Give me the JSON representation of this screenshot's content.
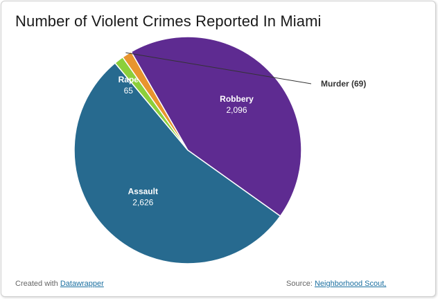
{
  "title": "Number of Violent Crimes Reported In Miami",
  "footer": {
    "created_prefix": "Created with",
    "created_link": "Datawrapper",
    "source_prefix": "Source:",
    "source_link": "Neighborhood Scout,"
  },
  "chart_data": {
    "type": "pie",
    "title": "Number of Violent Crimes Reported In Miami",
    "slices": [
      {
        "label": "Murder",
        "value": 69,
        "value_text": "Murder (69)",
        "color": "#e8952e",
        "external": true
      },
      {
        "label": "Robbery",
        "value": 2096,
        "value_text": "2,096",
        "color": "#5e2b91",
        "external": false
      },
      {
        "label": "Assault",
        "value": 2626,
        "value_text": "2,626",
        "color": "#276a8f",
        "external": false
      },
      {
        "label": "Rape",
        "value": 65,
        "value_text": "65",
        "color": "#8ccf3a",
        "external": false
      }
    ]
  }
}
